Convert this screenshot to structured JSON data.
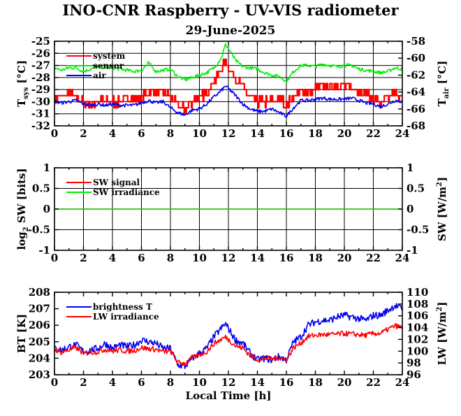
{
  "title": "INO-CNR Raspberry - UV-VIS radiometer",
  "subtitle": "29-June-2025",
  "colors": {
    "red": "#ff0000",
    "green": "#00ee00",
    "blue": "#0000ee"
  },
  "chart_data": [
    {
      "type": "line",
      "ylabel_left": "T",
      "ylabel_left_sub": "sys",
      "ylabel_left_unit": "[°C]",
      "ylabel_right": "T",
      "ylabel_right_sub": "air",
      "ylabel_right_unit": "[°C]",
      "xlim": [
        0,
        24
      ],
      "ylim": [
        -32,
        -25
      ],
      "ylim_right": [
        -68,
        -58
      ],
      "xticks": [
        "0",
        "2",
        "4",
        "6",
        "8",
        "10",
        "12",
        "14",
        "16",
        "18",
        "20",
        "22",
        "24"
      ],
      "yticks": [
        "-25",
        "-26",
        "-27",
        "-28",
        "-29",
        "-30",
        "-31",
        "-32"
      ],
      "yticks_right": [
        "-58",
        "-60",
        "-62",
        "-64",
        "-66",
        "-68"
      ],
      "grid": true,
      "legend": "top-left",
      "legend_entries": [
        "system",
        "sensor",
        "air"
      ],
      "series": [
        {
          "name": "system",
          "color": "red",
          "axis": "left",
          "x": [
            0,
            0.5,
            1,
            1.5,
            2,
            2.5,
            3,
            3.5,
            4,
            4.5,
            5,
            5.5,
            6,
            6.5,
            7,
            7.5,
            8,
            8.5,
            9,
            9.5,
            10,
            10.5,
            11,
            11.5,
            11.8,
            12,
            12.5,
            13,
            13.5,
            14,
            14.5,
            15,
            15.5,
            16,
            16.5,
            17,
            17.5,
            18,
            18.5,
            19,
            19.5,
            20,
            20.5,
            21,
            21.5,
            22,
            22.5,
            23,
            23.5,
            24
          ],
          "y": [
            -29.6,
            -29.6,
            -29.3,
            -29.6,
            -30,
            -30.3,
            -29.8,
            -30,
            -30,
            -30,
            -29.6,
            -29.8,
            -29.6,
            -29.3,
            -29.1,
            -29.2,
            -29.7,
            -30.3,
            -30.6,
            -29.9,
            -29.7,
            -29.2,
            -28.3,
            -27.3,
            -26.5,
            -27.2,
            -28.2,
            -28.8,
            -29.6,
            -30,
            -30,
            -30,
            -29.7,
            -30.3,
            -29.5,
            -29.2,
            -29.2,
            -28.9,
            -28.7,
            -28.8,
            -28.6,
            -28.7,
            -28.9,
            -29,
            -29.4,
            -29.8,
            -30.2,
            -29.8,
            -29.2,
            -29.8
          ]
        },
        {
          "name": "sensor",
          "color": "green",
          "axis": "left",
          "x": [
            0,
            0.5,
            1,
            1.5,
            2,
            2.5,
            3,
            3.5,
            4,
            4.5,
            5,
            5.5,
            6,
            6.5,
            7,
            7.5,
            8,
            8.5,
            9,
            9.5,
            10,
            10.5,
            11,
            11.5,
            11.8,
            12,
            12.5,
            13,
            13.5,
            14,
            14.5,
            15,
            15.5,
            16,
            16.5,
            17,
            17.5,
            18,
            18.5,
            19,
            19.5,
            20,
            20.5,
            21,
            21.5,
            22,
            22.5,
            23,
            23.5,
            24
          ],
          "y": [
            -27.2,
            -27.4,
            -27.2,
            -27.2,
            -27.5,
            -27.3,
            -27.1,
            -27.2,
            -27.2,
            -27.3,
            -27.4,
            -27.5,
            -27.4,
            -26.8,
            -27.5,
            -27.4,
            -27.3,
            -27.9,
            -28.2,
            -28,
            -27.8,
            -27.6,
            -27.2,
            -26.4,
            -25.3,
            -25.6,
            -26.6,
            -27.1,
            -27.2,
            -27.3,
            -27.6,
            -27.8,
            -27.9,
            -28.3,
            -27.5,
            -27,
            -27,
            -27.1,
            -26.9,
            -27,
            -27.1,
            -27,
            -27,
            -27.3,
            -27.4,
            -27.5,
            -27.6,
            -27.5,
            -27.2,
            -27.3
          ]
        },
        {
          "name": "air",
          "color": "blue",
          "axis": "left",
          "x": [
            0,
            0.5,
            1,
            1.5,
            2,
            2.5,
            3,
            3.5,
            4,
            4.5,
            5,
            5.5,
            6,
            6.5,
            7,
            7.5,
            8,
            8.5,
            9,
            9.5,
            10,
            10.5,
            11,
            11.5,
            11.8,
            12,
            12.5,
            13,
            13.5,
            14,
            14.5,
            15,
            15.5,
            16,
            16.5,
            17,
            17.5,
            18,
            18.5,
            19,
            19.5,
            20,
            20.5,
            21,
            21.5,
            22,
            22.5,
            23,
            23.5,
            24
          ],
          "y": [
            -30,
            -30.1,
            -30,
            -29.9,
            -30.2,
            -30.3,
            -30.2,
            -30.3,
            -30.2,
            -30.3,
            -30.3,
            -30.3,
            -30.1,
            -29.9,
            -30.1,
            -30,
            -30.5,
            -30.9,
            -31.1,
            -30.7,
            -30.6,
            -30.2,
            -29.6,
            -29.1,
            -28.7,
            -28.9,
            -29.5,
            -30.2,
            -30.6,
            -30.8,
            -30.8,
            -30.6,
            -30.9,
            -31.2,
            -30.5,
            -29.9,
            -29.9,
            -29.8,
            -29.7,
            -29.8,
            -29.8,
            -29.8,
            -29.7,
            -29.9,
            -30.1,
            -30.2,
            -30.4,
            -30.2,
            -29.9,
            -30
          ]
        }
      ]
    },
    {
      "type": "line",
      "ylabel_left": "log",
      "ylabel_left_sub": "2",
      "ylabel_left_unit": "SW [bits]",
      "ylabel_right": "SW [W/m",
      "ylabel_right_sup": "2",
      "ylabel_right_end": "]",
      "xlim": [
        0,
        24
      ],
      "ylim": [
        -1,
        1
      ],
      "ylim_right": [
        -1,
        1
      ],
      "xticks": [
        "0",
        "2",
        "4",
        "6",
        "8",
        "10",
        "12",
        "14",
        "16",
        "18",
        "20",
        "22",
        "24"
      ],
      "yticks": [
        "1",
        "0.5",
        "0",
        "-0.5",
        "-1"
      ],
      "yticks_right": [
        "1",
        "0.5",
        "0",
        "-0.5",
        "-1"
      ],
      "grid": true,
      "legend": "top-left",
      "legend_entries": [
        "SW signal",
        "SW irradiance"
      ],
      "series": [
        {
          "name": "SW signal",
          "color": "red",
          "axis": "left",
          "x": [
            0,
            24
          ],
          "y": [
            0,
            0
          ]
        },
        {
          "name": "SW irradiance",
          "color": "green",
          "axis": "left",
          "x": [
            0,
            24
          ],
          "y": [
            0,
            0
          ]
        }
      ]
    },
    {
      "type": "line",
      "ylabel_left": "BT [K]",
      "ylabel_right": "LW [W/m",
      "ylabel_right_sup": "2",
      "ylabel_right_end": "]",
      "xlabel": "Local Time [h]",
      "xlim": [
        0,
        24
      ],
      "ylim": [
        203,
        208
      ],
      "ylim_right": [
        96,
        110
      ],
      "xticks": [
        "0",
        "2",
        "4",
        "6",
        "8",
        "10",
        "12",
        "14",
        "16",
        "18",
        "20",
        "22",
        "24"
      ],
      "yticks": [
        "208",
        "207",
        "206",
        "205",
        "204",
        "203"
      ],
      "yticks_right": [
        "110",
        "108",
        "106",
        "104",
        "102",
        "100",
        "98",
        "96"
      ],
      "grid": false,
      "legend": "top-left",
      "legend_entries": [
        "brightness T",
        "LW irradiance"
      ],
      "series": [
        {
          "name": "brightness T",
          "color": "blue",
          "axis": "left",
          "x": [
            0,
            0.5,
            1,
            1.5,
            2,
            2.5,
            3,
            3.5,
            4,
            4.5,
            5,
            5.5,
            6,
            6.5,
            7,
            7.5,
            8,
            8.5,
            9,
            9.5,
            10,
            10.5,
            11,
            11.5,
            11.8,
            12,
            12.5,
            13,
            13.5,
            14,
            14.5,
            15,
            15.5,
            16,
            16.5,
            17,
            17.5,
            18,
            18.5,
            19,
            19.5,
            20,
            20.5,
            21,
            21.5,
            22,
            22.5,
            23,
            23.5,
            24
          ],
          "y": [
            204.6,
            204.5,
            204.7,
            204.8,
            204.4,
            204.5,
            204.6,
            204.9,
            204.6,
            204.8,
            204.7,
            204.8,
            205.1,
            205.0,
            204.9,
            204.6,
            204.6,
            203.6,
            203.5,
            204.0,
            204.3,
            204.6,
            205.3,
            205.8,
            206.1,
            205.8,
            205.1,
            204.9,
            204.3,
            203.9,
            204.0,
            203.9,
            204.1,
            203.9,
            205.0,
            205.3,
            206.0,
            206.2,
            206.3,
            206.3,
            206.5,
            206.6,
            206.5,
            206.4,
            206.3,
            206.6,
            206.6,
            206.9,
            207.2,
            207.0
          ]
        },
        {
          "name": "LW irradiance",
          "color": "red",
          "axis": "right",
          "x": [
            0,
            0.5,
            1,
            1.5,
            2,
            2.5,
            3,
            3.5,
            4,
            4.5,
            5,
            5.5,
            6,
            6.5,
            7,
            7.5,
            8,
            8.5,
            9,
            9.5,
            10,
            10.5,
            11,
            11.5,
            11.8,
            12,
            12.5,
            13,
            13.5,
            14,
            14.5,
            15,
            15.5,
            16,
            16.5,
            17,
            17.5,
            18,
            18.5,
            19,
            19.5,
            20,
            20.5,
            21,
            21.5,
            22,
            22.5,
            23,
            23.5,
            24
          ],
          "y": [
            100.3,
            99.8,
            100.2,
            100.6,
            99.6,
            99.8,
            99.9,
            100.3,
            100.0,
            100.2,
            100.0,
            100.1,
            100.6,
            100.4,
            100.3,
            99.9,
            100.0,
            98.1,
            97.9,
            98.8,
            99.4,
            99.9,
            101.3,
            102.0,
            102.4,
            102.0,
            100.9,
            100.5,
            99.3,
            98.6,
            98.8,
            98.7,
            98.9,
            98.5,
            100.6,
            101.4,
            102.5,
            102.7,
            102.8,
            102.8,
            102.9,
            103.0,
            102.9,
            102.8,
            102.7,
            103.0,
            103.0,
            103.7,
            104.3,
            104.0
          ]
        }
      ]
    }
  ]
}
